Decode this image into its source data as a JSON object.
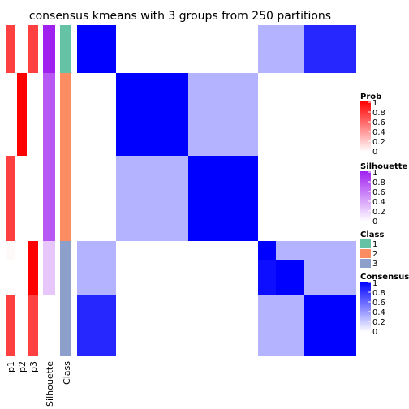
{
  "chart_data": {
    "type": "heatmap",
    "title": "consensus kmeans with 3 groups from 250 partitions",
    "row_blocks": [
      {
        "p1": 0.75,
        "p2": 0.0,
        "p3": 0.75,
        "silhouette": 1.0,
        "cls": 1,
        "consensus": [
          1.0,
          0.0,
          0.0,
          0.3,
          0.3,
          0.85
        ]
      },
      {
        "p1": 0.0,
        "p2": 1.0,
        "p3": 0.0,
        "silhouette": 0.75,
        "cls": 2,
        "consensus": [
          0.0,
          1.0,
          0.3,
          0.0,
          0.0,
          0.0
        ]
      },
      {
        "p1": 0.75,
        "p2": 0.0,
        "p3": 0.0,
        "silhouette": 0.75,
        "cls": 2,
        "consensus": [
          0.0,
          0.3,
          1.0,
          0.0,
          0.0,
          0.0
        ]
      },
      {
        "p1": 0.02,
        "p2": 0.0,
        "p3": 1.0,
        "silhouette": 0.25,
        "cls": 3,
        "consensus": [
          0.3,
          0.0,
          0.0,
          1.0,
          0.3,
          0.3
        ]
      },
      {
        "p1": 0.0,
        "p2": 0.0,
        "p3": 1.0,
        "silhouette": 0.25,
        "cls": 3,
        "consensus": [
          0.3,
          0.0,
          0.0,
          0.95,
          1.0,
          0.3
        ]
      },
      {
        "p1": 0.75,
        "p2": 0.0,
        "p3": 0.75,
        "silhouette": 0.0,
        "cls": 3,
        "consensus": [
          0.85,
          0.0,
          0.0,
          0.3,
          0.3,
          1.0
        ]
      }
    ],
    "annotation_columns": [
      "p1",
      "p2",
      "p3",
      "Silhouette",
      "Class"
    ],
    "legends": [
      {
        "title": "Prob",
        "ticks": [
          "1",
          "0.8",
          "0.6",
          "0.4",
          "0.2",
          "0"
        ],
        "low_color": "#ffffff",
        "high_color": "#ff0000"
      },
      {
        "title": "Silhouette",
        "ticks": [
          "1",
          "0.8",
          "0.6",
          "0.4",
          "0.2",
          "0"
        ],
        "low_color": "#ffffff",
        "high_color": "#a020f0"
      },
      {
        "title": "Class",
        "items": [
          {
            "label": "1",
            "color": "#66c2a5"
          },
          {
            "label": "2",
            "color": "#fc8d62"
          },
          {
            "label": "3",
            "color": "#8da0cb"
          }
        ]
      },
      {
        "title": "Consensus",
        "ticks": [
          "1",
          "0.8",
          "0.6",
          "0.4",
          "0.2",
          "0"
        ],
        "low_color": "#ffffff",
        "high_color": "#0000ff"
      }
    ]
  }
}
